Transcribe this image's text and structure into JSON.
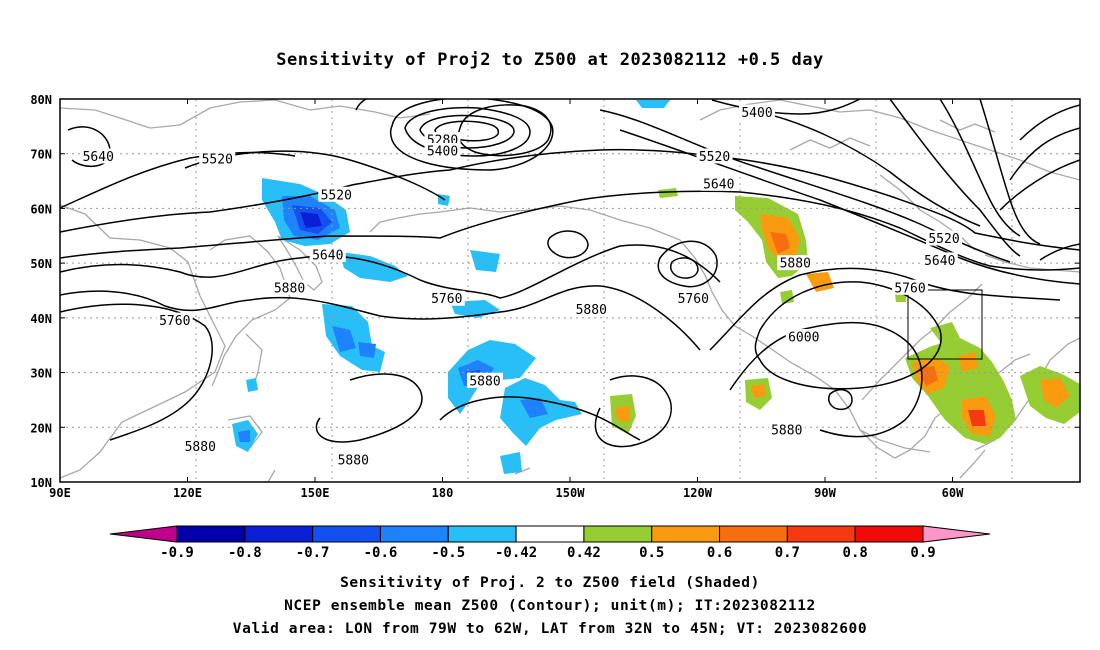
{
  "title": "Sensitivity of Proj2 to Z500 at 2023082112 +0.5 day",
  "lat_labels": [
    "80N",
    "70N",
    "60N",
    "50N",
    "40N",
    "30N",
    "20N",
    "10N"
  ],
  "lon_labels": [
    "90E",
    "120E",
    "150E",
    "180",
    "150W",
    "120W",
    "90W",
    "60W"
  ],
  "contour_labels": [
    {
      "text": "5640",
      "lon": 99,
      "lat": 69.5
    },
    {
      "text": "5520",
      "lon": 127,
      "lat": 69
    },
    {
      "text": "5520",
      "lon": 155,
      "lat": 62.5
    },
    {
      "text": "5640",
      "lon": 153,
      "lat": 51.5
    },
    {
      "text": "5880",
      "lon": 144,
      "lat": 45.5
    },
    {
      "text": "5760",
      "lon": 117,
      "lat": 39.5
    },
    {
      "text": "5880",
      "lon": 123,
      "lat": 16.5
    },
    {
      "text": "5880",
      "lon": 159,
      "lat": 14
    },
    {
      "text": "5760",
      "lon": 181,
      "lat": 43.5
    },
    {
      "text": "5880",
      "lon": 190,
      "lat": 28.5
    },
    {
      "text": "5880",
      "lon": 215,
      "lat": 41.5
    },
    {
      "text": "5280",
      "lon": 180,
      "lat": 72.5
    },
    {
      "text": "5400",
      "lon": 180,
      "lat": 70.5
    },
    {
      "text": "5400",
      "lon": 254,
      "lat": 77.5
    },
    {
      "text": "5520",
      "lon": 244,
      "lat": 69.5
    },
    {
      "text": "5640",
      "lon": 245,
      "lat": 64.5
    },
    {
      "text": "5760",
      "lon": 239,
      "lat": 43.5
    },
    {
      "text": "5880",
      "lon": 263,
      "lat": 50
    },
    {
      "text": "6000",
      "lon": 265,
      "lat": 36.5
    },
    {
      "text": "5880",
      "lon": 261,
      "lat": 19.5
    },
    {
      "text": "5760",
      "lon": 290,
      "lat": 45.5
    },
    {
      "text": "5640",
      "lon": 297,
      "lat": 50.5
    },
    {
      "text": "5520",
      "lon": 298,
      "lat": 54.5
    }
  ],
  "colorbar": {
    "labels": [
      "-0.9",
      "-0.8",
      "-0.7",
      "-0.6",
      "-0.5",
      "-0.42",
      "0.42",
      "0.5",
      "0.6",
      "0.7",
      "0.8",
      "0.9"
    ],
    "colors": [
      "#c0008a",
      "#0000aa",
      "#0b1fd6",
      "#1450f0",
      "#1e82fa",
      "#28bef7",
      "#ffffff",
      "#96cd32",
      "#fa9b0f",
      "#f76e10",
      "#f53a12",
      "#f00a0a",
      "#ff96c8"
    ]
  },
  "valid_area": {
    "lon_min": -79,
    "lon_max": -62,
    "lat_min": 32,
    "lat_max": 45
  },
  "caption": [
    "Sensitivity of Proj. 2 to Z500 field (Shaded)",
    "NCEP ensemble mean Z500 (Contour); unit(m); IT:2023082112",
    "Valid area: LON from 79W to 62W, LAT from 32N to 45N; VT: 2023082600"
  ]
}
